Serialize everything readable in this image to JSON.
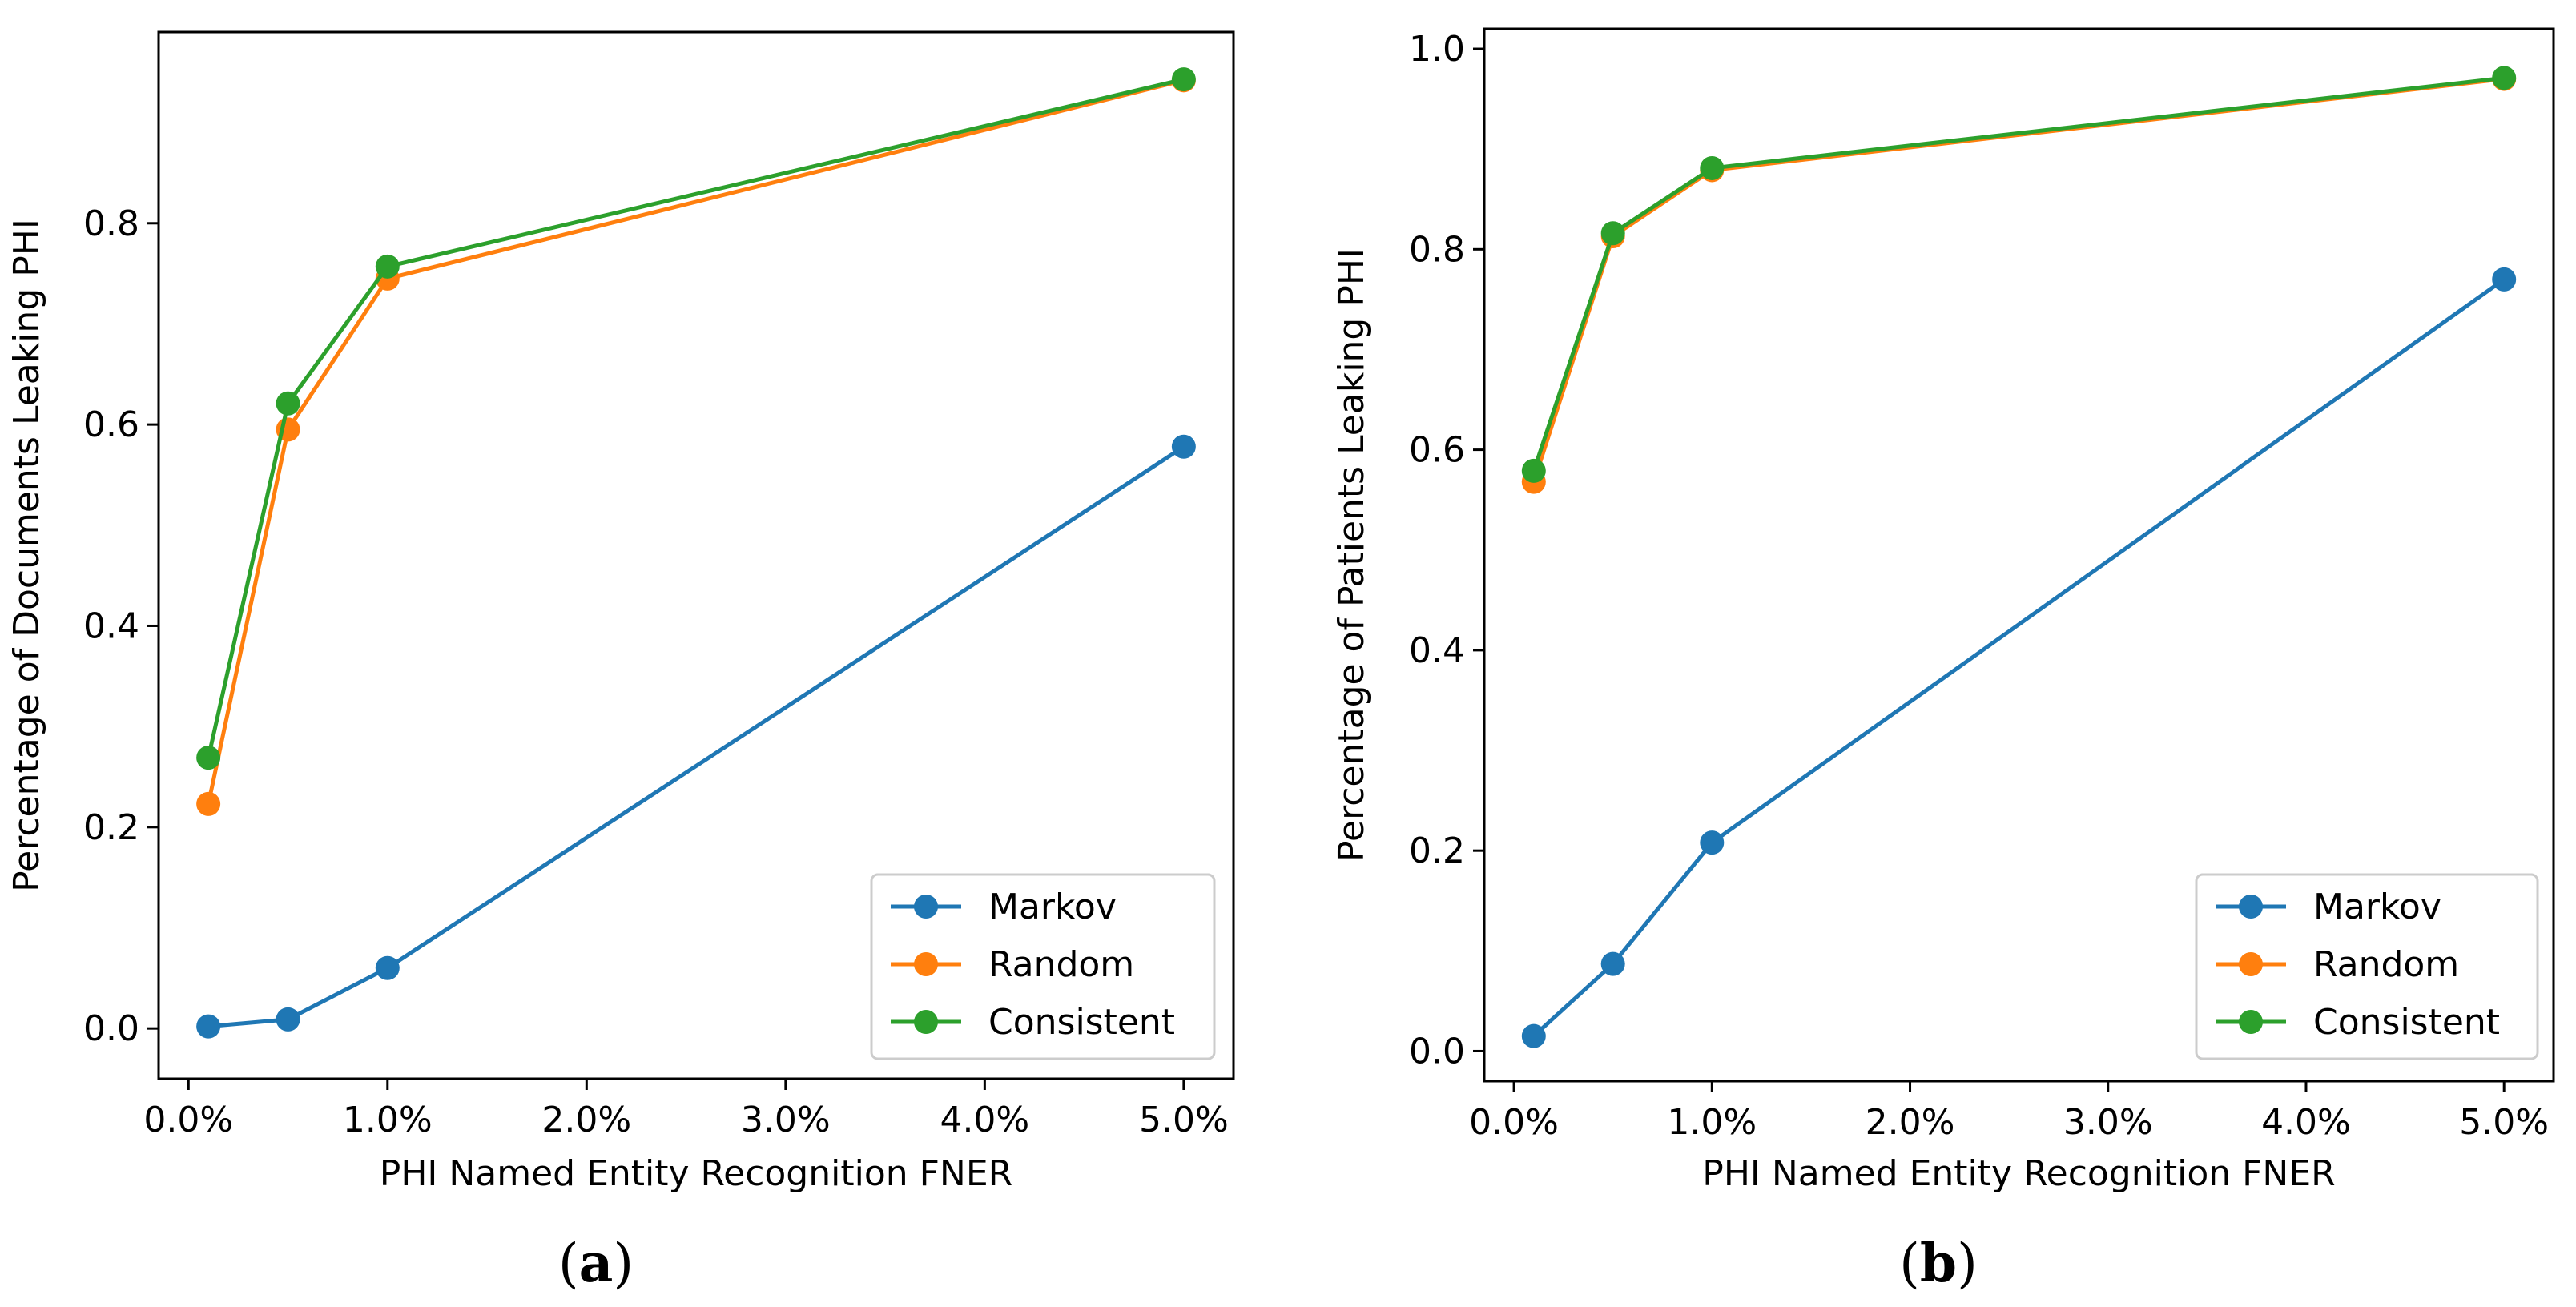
{
  "chart_data": [
    {
      "type": "line",
      "panel": "a",
      "caption": "a",
      "title": "",
      "xlabel": "PHI Named Entity Recognition FNER",
      "ylabel": "Percentage of Documents Leaking PHI",
      "x": [
        0.1,
        0.5,
        1.0,
        5.0
      ],
      "xlim": [
        -0.15,
        5.25
      ],
      "ylim": [
        -0.05,
        0.99
      ],
      "xticks": [
        0.0,
        1.0,
        2.0,
        3.0,
        4.0,
        5.0
      ],
      "xtick_labels": [
        "0.0%",
        "1.0%",
        "2.0%",
        "3.0%",
        "4.0%",
        "5.0%"
      ],
      "yticks": [
        0.0,
        0.2,
        0.4,
        0.6,
        0.8
      ],
      "ytick_labels": [
        "0.0",
        "0.2",
        "0.4",
        "0.6",
        "0.8"
      ],
      "grid": false,
      "legend_position": "bottom-right",
      "series": [
        {
          "name": "Markov",
          "color": "#1f77b4",
          "values": [
            0.002,
            0.009,
            0.06,
            0.578
          ]
        },
        {
          "name": "Random",
          "color": "#ff7f0e",
          "values": [
            0.223,
            0.595,
            0.745,
            0.942
          ]
        },
        {
          "name": "Consistent",
          "color": "#2ca02c",
          "values": [
            0.269,
            0.621,
            0.757,
            0.943
          ]
        }
      ]
    },
    {
      "type": "line",
      "panel": "b",
      "caption": "b",
      "title": "",
      "xlabel": "PHI Named Entity Recognition FNER",
      "ylabel": "Percentage of Patients Leaking PHI",
      "x": [
        0.1,
        0.5,
        1.0,
        5.0
      ],
      "xlim": [
        -0.15,
        5.25
      ],
      "ylim": [
        -0.03,
        1.02
      ],
      "xticks": [
        0.0,
        1.0,
        2.0,
        3.0,
        4.0,
        5.0
      ],
      "xtick_labels": [
        "0.0%",
        "1.0%",
        "2.0%",
        "3.0%",
        "4.0%",
        "5.0%"
      ],
      "yticks": [
        0.0,
        0.2,
        0.4,
        0.6,
        0.8,
        1.0
      ],
      "ytick_labels": [
        "0.0",
        "0.2",
        "0.4",
        "0.6",
        "0.8",
        "1.0"
      ],
      "grid": false,
      "legend_position": "bottom-right",
      "series": [
        {
          "name": "Markov",
          "color": "#1f77b4",
          "values": [
            0.015,
            0.087,
            0.208,
            0.77
          ]
        },
        {
          "name": "Random",
          "color": "#ff7f0e",
          "values": [
            0.568,
            0.813,
            0.879,
            0.97
          ]
        },
        {
          "name": "Consistent",
          "color": "#2ca02c",
          "values": [
            0.579,
            0.816,
            0.881,
            0.971
          ]
        }
      ]
    }
  ]
}
